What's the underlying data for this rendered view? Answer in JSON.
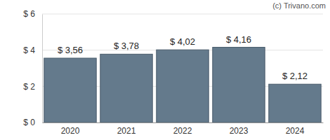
{
  "chart_data": {
    "type": "bar",
    "annotations": [
      "(c) Trivano.com"
    ],
    "categories": [
      "2020",
      "2021",
      "2022",
      "2023",
      "2024"
    ],
    "values": [
      3.56,
      3.78,
      4.02,
      4.16,
      2.12
    ],
    "value_labels": [
      "$ 3,56",
      "$ 3,78",
      "$ 4,02",
      "$ 4,16",
      "$ 2,12"
    ],
    "data_labels": true,
    "color": "#647a8c",
    "ylim": [
      0,
      6
    ],
    "yticks": [
      {
        "value": 0,
        "label": "$ 0"
      },
      {
        "value": 2,
        "label": "$ 2"
      },
      {
        "value": 4,
        "label": "$ 4"
      },
      {
        "value": 6,
        "label": "$ 6"
      }
    ],
    "grid": true
  }
}
